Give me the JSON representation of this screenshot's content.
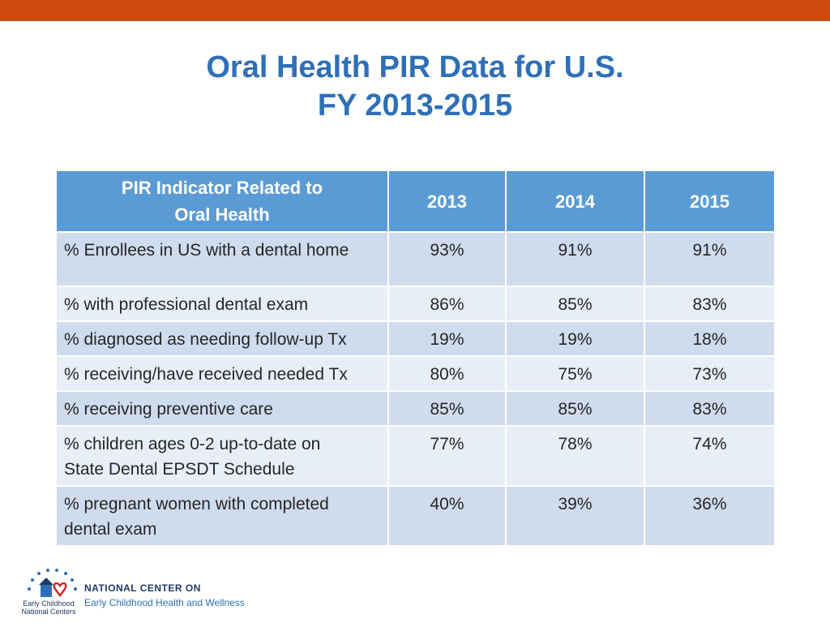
{
  "title": {
    "line1": "Oral Health PIR Data for U.S.",
    "line2": "FY 2013-2015"
  },
  "table": {
    "headers": [
      "PIR Indicator Related to",
      "Oral Health",
      "2013",
      "2014",
      "2015"
    ],
    "rows": [
      {
        "label": "% Enrollees in US with a dental home",
        "v2013": "93%",
        "v2014": "91%",
        "v2015": "91%"
      },
      {
        "label": "% with professional dental exam",
        "v2013": "86%",
        "v2014": "85%",
        "v2015": "83%"
      },
      {
        "label": "% diagnosed as needing follow-up Tx",
        "v2013": "19%",
        "v2014": "19%",
        "v2015": "18%"
      },
      {
        "label": "% receiving/have received needed Tx",
        "v2013": "80%",
        "v2014": "75%",
        "v2015": "73%"
      },
      {
        "label": "% receiving preventive care",
        "v2013": "85%",
        "v2014": "85%",
        "v2015": "83%"
      },
      {
        "label_line1": "% children ages 0-2 up-to-date on",
        "label_line2": "State Dental EPSDT Schedule",
        "v2013": "77%",
        "v2014": "78%",
        "v2015": "74%"
      },
      {
        "label_line1": "% pregnant women with completed",
        "label_line2": "dental exam",
        "v2013": "40%",
        "v2014": "39%",
        "v2015": "36%"
      }
    ]
  },
  "logo": {
    "small_line1": "Early Childhood",
    "small_line2": "National Centers",
    "line1": "NATIONAL CENTER ON",
    "line2": "Early Childhood Health and Wellness"
  },
  "colors": {
    "top_bar": "#cc4a0e",
    "title": "#2e6fb7",
    "header_bg": "#5b9bd5",
    "row_odd": "#cfdcee",
    "row_even": "#e8eef7"
  }
}
